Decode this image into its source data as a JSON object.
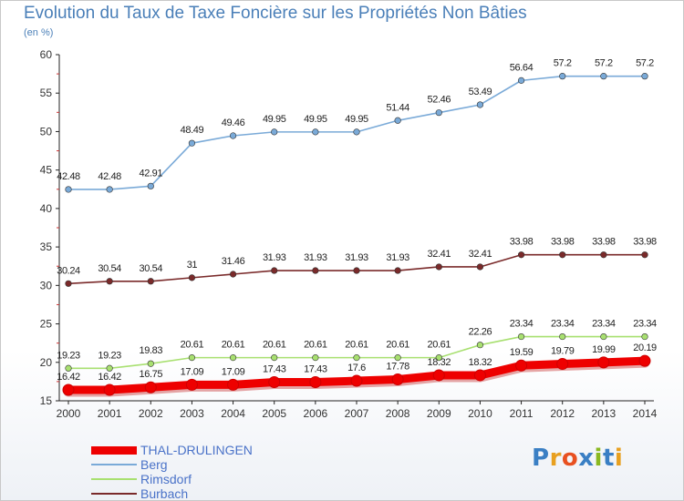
{
  "title": "Evolution du Taux de Taxe Foncière sur les Propriétés Non Bâties",
  "subtitle": "(en %)",
  "logo": {
    "text": "Proxiti",
    "colors": [
      "#3a7fc4",
      "#e8a020",
      "#e85020",
      "#3a7fc4",
      "#8ab820",
      "#3a7fc4",
      "#e8a020"
    ]
  },
  "chart_data": {
    "type": "line",
    "title": "Evolution du Taux de Taxe Foncière sur les Propriétés Non Bâties",
    "ylabel": "(en %)",
    "xlabel": "",
    "ylim": [
      15,
      60
    ],
    "yticks": [
      15,
      20,
      25,
      30,
      35,
      40,
      45,
      50,
      55,
      60
    ],
    "x": [
      "2000",
      "2001",
      "2002",
      "2003",
      "2004",
      "2005",
      "2006",
      "2007",
      "2008",
      "2009",
      "2010",
      "2011",
      "2012",
      "2013",
      "2014"
    ],
    "grid": false,
    "legend": "bottom-left",
    "series": [
      {
        "name": "THAL-DRULINGEN",
        "color": "#ee0000",
        "values": [
          16.42,
          16.42,
          16.75,
          17.09,
          17.09,
          17.43,
          17.43,
          17.6,
          17.78,
          18.32,
          18.32,
          19.59,
          19.79,
          19.99,
          20.19
        ],
        "labels": [
          "16.42",
          "16.42",
          "16.75",
          "17.09",
          "17.09",
          "17.43",
          "17.43",
          "17.6",
          "17.78",
          "18.32",
          "18.32",
          "19.59",
          "19.79",
          "19.99",
          "20.19"
        ]
      },
      {
        "name": "Berg",
        "color": "#7aaad8",
        "values": [
          42.48,
          42.48,
          42.91,
          48.49,
          49.46,
          49.95,
          49.95,
          49.95,
          51.44,
          52.46,
          53.49,
          56.64,
          57.2,
          57.2,
          57.2
        ],
        "labels": [
          "42.48",
          "42.48",
          "42.91",
          "48.49",
          "49.46",
          "49.95",
          "49.95",
          "49.95",
          "51.44",
          "52.46",
          "53.49",
          "56.64",
          "57.2",
          "57.2",
          "57.2"
        ]
      },
      {
        "name": "Rimsdorf",
        "color": "#a8e070",
        "values": [
          19.23,
          19.23,
          19.83,
          20.61,
          20.61,
          20.61,
          20.61,
          20.61,
          20.61,
          20.61,
          22.26,
          23.34,
          23.34,
          23.34,
          23.34
        ],
        "labels": [
          "19.23",
          "19.23",
          "19.83",
          "20.61",
          "20.61",
          "20.61",
          "20.61",
          "20.61",
          "20.61",
          "20.61",
          "22.26",
          "23.34",
          "23.34",
          "23.34",
          "23.34"
        ]
      },
      {
        "name": "Burbach",
        "color": "#7a2a2a",
        "values": [
          30.24,
          30.54,
          30.54,
          31,
          31.46,
          31.93,
          31.93,
          31.93,
          31.93,
          32.41,
          32.41,
          33.98,
          33.98,
          33.98,
          33.98
        ],
        "labels": [
          "30.24",
          "30.54",
          "30.54",
          "31",
          "31.46",
          "31.93",
          "31.93",
          "31.93",
          "31.93",
          "32.41",
          "32.41",
          "33.98",
          "33.98",
          "33.98",
          "33.98"
        ]
      }
    ]
  }
}
